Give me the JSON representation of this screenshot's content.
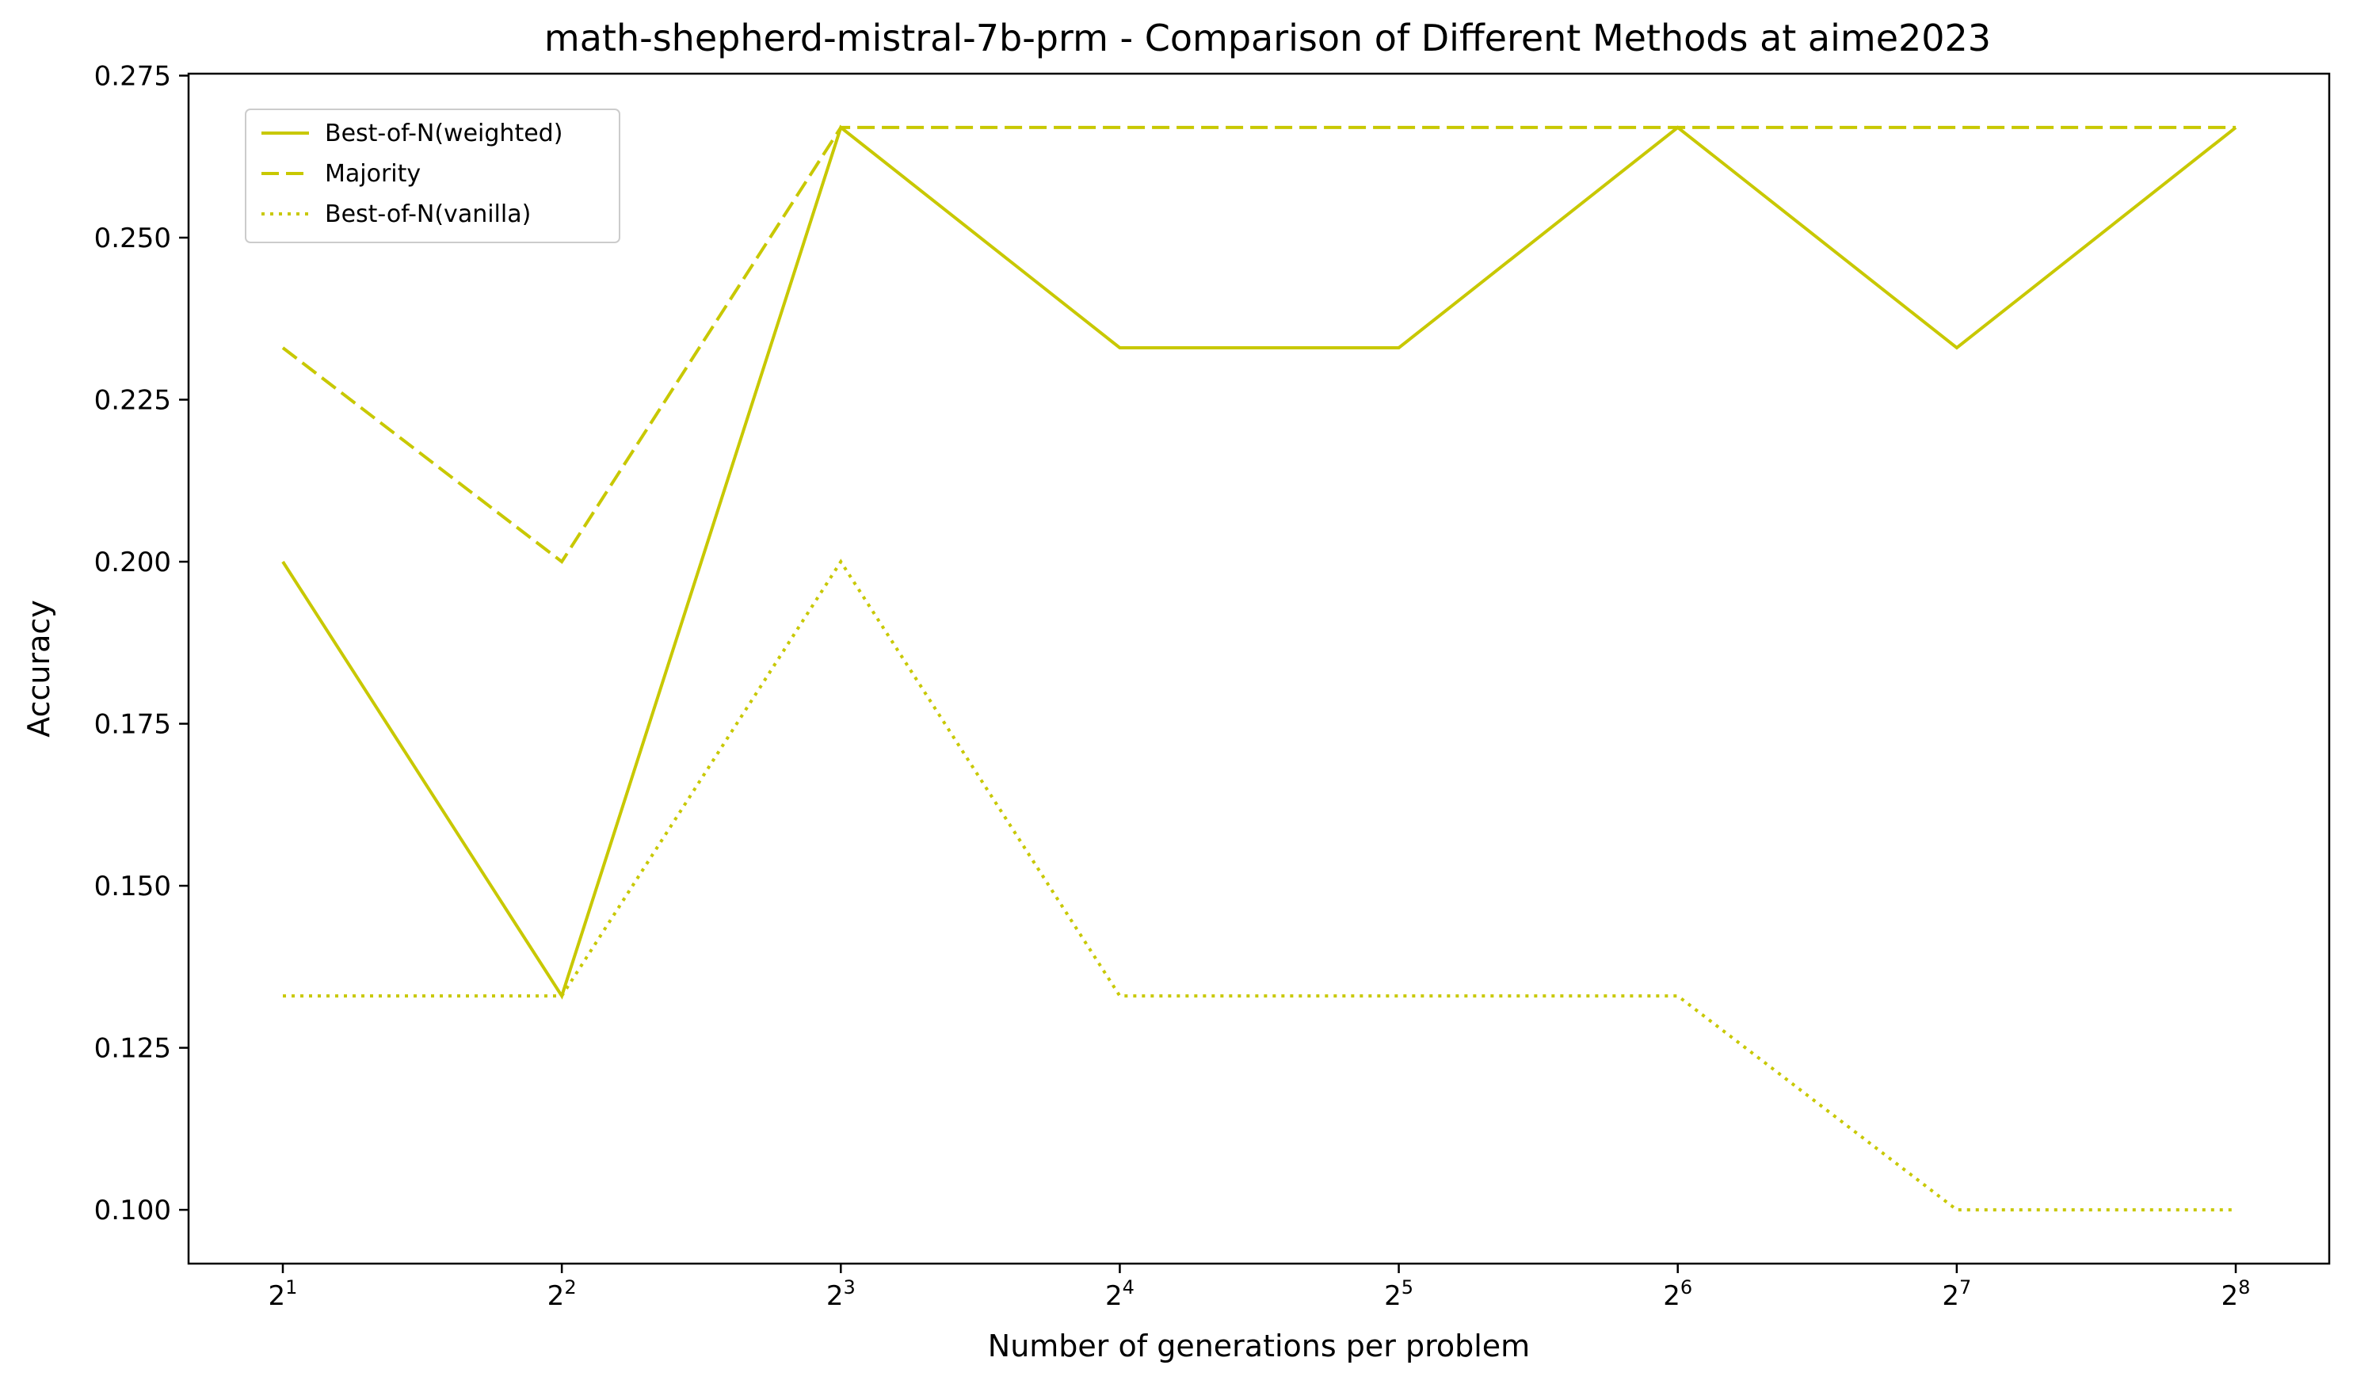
{
  "chart_data": {
    "type": "line",
    "title": "math-shepherd-mistral-7b-prm - Comparison of Different Methods at aime2023",
    "xlabel": "Number of generations per problem",
    "ylabel": "Accuracy",
    "x_scale": "log2",
    "x": [
      2,
      4,
      8,
      16,
      32,
      64,
      128,
      256
    ],
    "x_tick_labels": [
      {
        "base": "2",
        "exp": "1"
      },
      {
        "base": "2",
        "exp": "2"
      },
      {
        "base": "2",
        "exp": "3"
      },
      {
        "base": "2",
        "exp": "4"
      },
      {
        "base": "2",
        "exp": "5"
      },
      {
        "base": "2",
        "exp": "6"
      },
      {
        "base": "2",
        "exp": "7"
      },
      {
        "base": "2",
        "exp": "8"
      }
    ],
    "ylim": [
      0.0917,
      0.2753
    ],
    "y_ticks": [
      "0.100",
      "0.125",
      "0.150",
      "0.175",
      "0.200",
      "0.225",
      "0.250",
      "0.275"
    ],
    "grid": false,
    "legend_position": "top-left",
    "series": [
      {
        "name": "Best-of-N(weighted)",
        "style": "solid",
        "color": "#c8c800",
        "values": [
          0.2,
          0.133,
          0.267,
          0.233,
          0.233,
          0.267,
          0.233,
          0.267
        ]
      },
      {
        "name": "Majority",
        "style": "dashed",
        "color": "#c8c800",
        "values": [
          0.233,
          0.2,
          0.267,
          0.267,
          0.267,
          0.267,
          0.267,
          0.267
        ]
      },
      {
        "name": "Best-of-N(vanilla)",
        "style": "dotted",
        "color": "#c8c800",
        "values": [
          0.133,
          0.133,
          0.2,
          0.133,
          0.133,
          0.133,
          0.1,
          0.1
        ]
      }
    ]
  }
}
